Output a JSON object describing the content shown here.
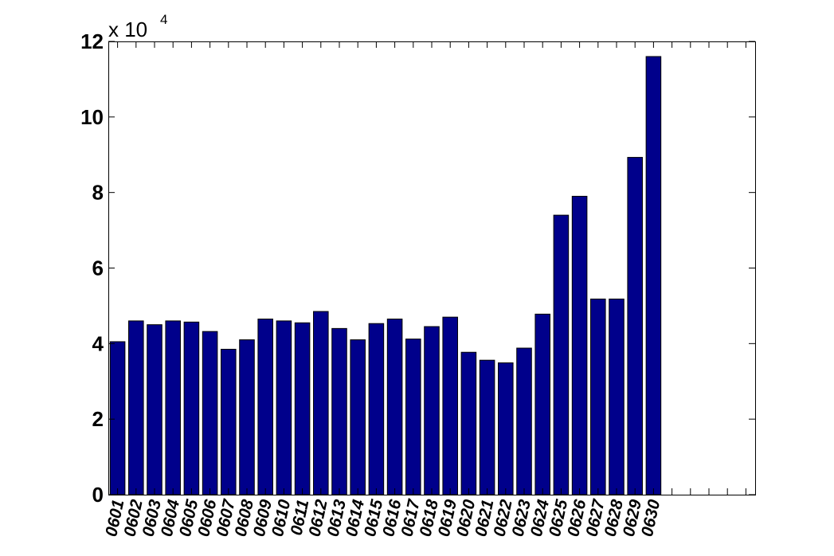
{
  "chart_data": {
    "type": "bar",
    "categories": [
      "0601",
      "0602",
      "0603",
      "0604",
      "0605",
      "0606",
      "0607",
      "0608",
      "0609",
      "0610",
      "0611",
      "0612",
      "0613",
      "0614",
      "0615",
      "0616",
      "0617",
      "0618",
      "0619",
      "0620",
      "0621",
      "0622",
      "0623",
      "0624",
      "0625",
      "0626",
      "0627",
      "0628",
      "0629",
      "0630"
    ],
    "values": [
      40500,
      46000,
      45000,
      46000,
      45700,
      43200,
      38500,
      41000,
      46500,
      46000,
      45500,
      48500,
      44000,
      41000,
      45300,
      46500,
      41200,
      44500,
      47000,
      37700,
      35600,
      34900,
      38800,
      47800,
      74000,
      79000,
      51800,
      51800,
      89300,
      116000
    ],
    "ylim": [
      0,
      120000
    ],
    "xlim_categories": [
      0.5,
      35.5
    ],
    "yticks": [
      0,
      2,
      4,
      6,
      8,
      10,
      12
    ],
    "y_multiplier": {
      "base": "x 10",
      "exponent": "4"
    },
    "bar_color": "#00008b",
    "grid": false,
    "title": "",
    "xlabel": "",
    "ylabel": ""
  }
}
